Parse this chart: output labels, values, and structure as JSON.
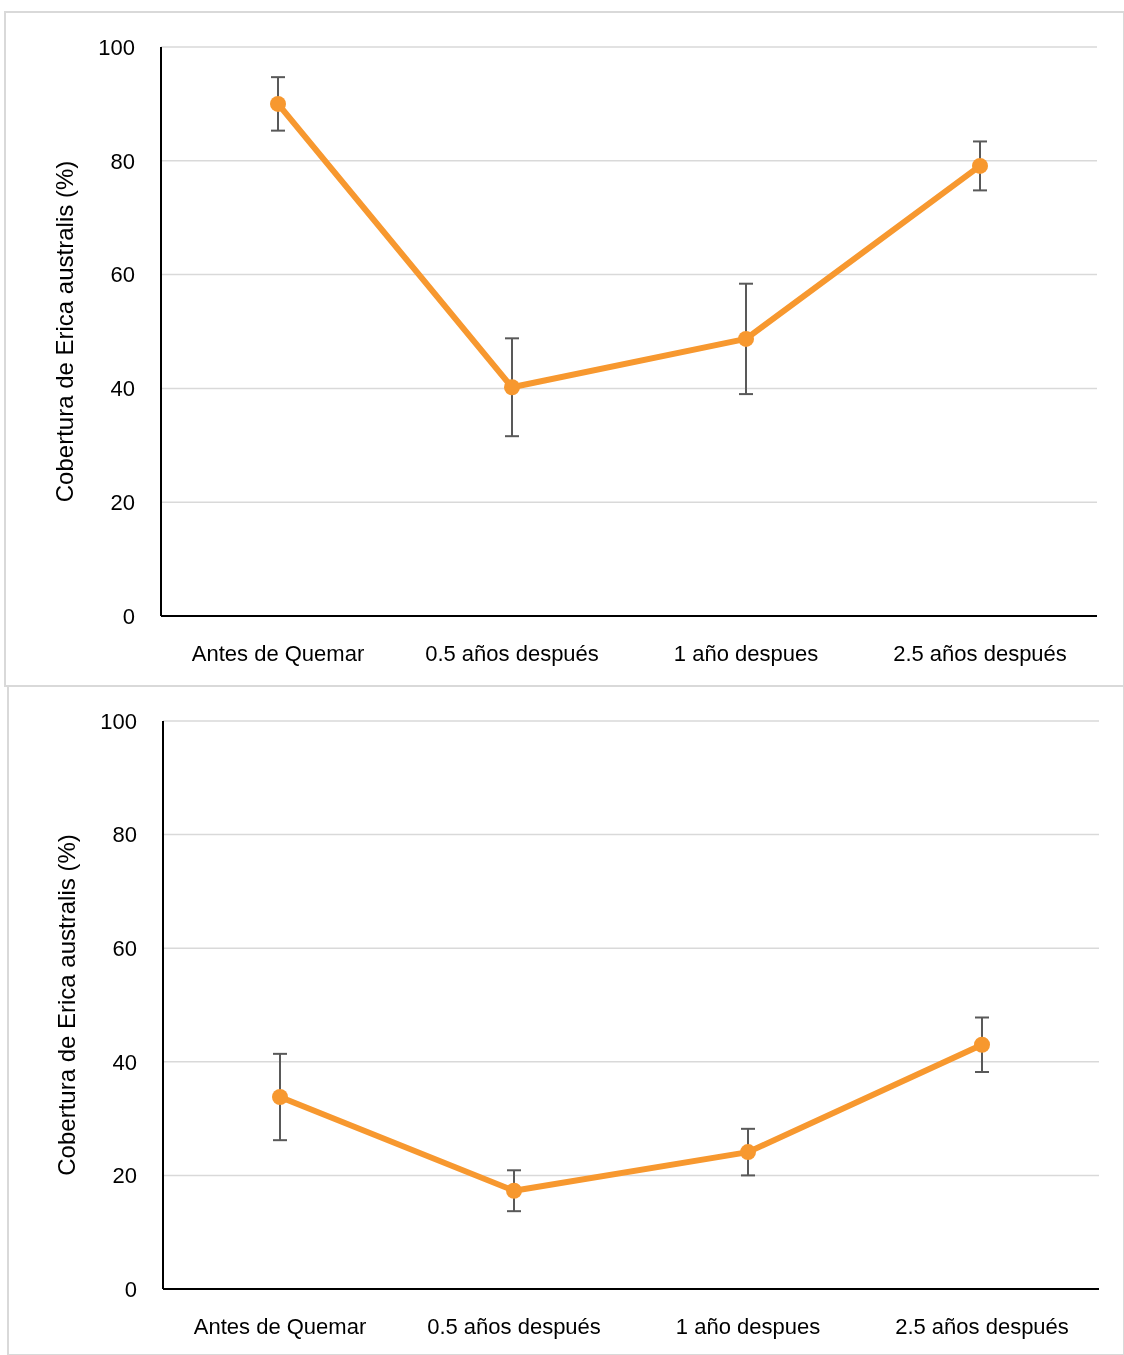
{
  "chart_data": [
    {
      "type": "line",
      "ylabel": "Cobertura de Erica australis (%)",
      "categories": [
        "Antes de Quemar",
        "0.5 años después",
        "1 año despues",
        "2.5 años después"
      ],
      "series": [
        {
          "color": "#f7982f",
          "values": [
            90.0,
            40.2,
            48.7,
            79.1
          ],
          "errors": [
            4.7,
            8.6,
            9.7,
            4.3
          ]
        }
      ],
      "ylim": [
        0,
        100
      ],
      "yticks": [
        0,
        20,
        40,
        60,
        80,
        100
      ],
      "grid": "y",
      "marker": "circle",
      "line_style": "solid"
    },
    {
      "type": "line",
      "ylabel": "Cobertura de Erica australis (%)",
      "categories": [
        "Antes de Quemar",
        "0.5 años después",
        "1 año despues",
        "2.5 años después"
      ],
      "series": [
        {
          "color": "#f7982f",
          "values": [
            33.8,
            17.3,
            24.1,
            43.0
          ],
          "errors": [
            7.6,
            3.6,
            4.1,
            4.8
          ]
        }
      ],
      "ylim": [
        0,
        100
      ],
      "yticks": [
        0,
        20,
        40,
        60,
        80,
        100
      ],
      "grid": "y",
      "marker": "circle",
      "line_style": "solid"
    }
  ]
}
